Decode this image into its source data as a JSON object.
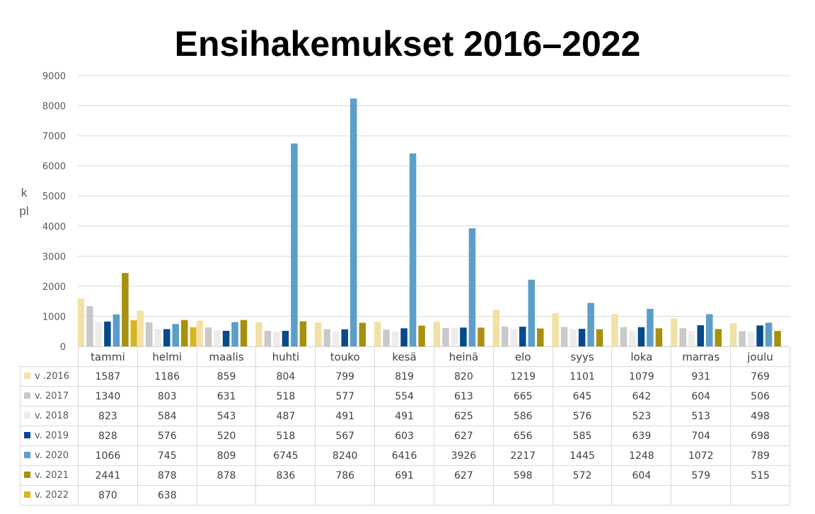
{
  "chart_data": {
    "type": "bar",
    "title": "Ensihakemukset 2016–2022",
    "ylabel": "kpl",
    "xlabel": "",
    "ylim": [
      0,
      9000
    ],
    "yticks": [
      0,
      1000,
      2000,
      3000,
      4000,
      5000,
      6000,
      7000,
      8000,
      9000
    ],
    "grid": true,
    "legend": "data-table",
    "categories": [
      "tammi",
      "helmi",
      "maalis",
      "huhti",
      "touko",
      "kesä",
      "heinä",
      "elo",
      "syys",
      "loka",
      "marras",
      "joulu"
    ],
    "series": [
      {
        "name": "v .2016",
        "color": "#f2e1a6",
        "values": [
          1587,
          1186,
          859,
          804,
          799,
          819,
          820,
          1219,
          1101,
          1079,
          931,
          769
        ]
      },
      {
        "name": "v. 2017",
        "color": "#c9c9c9",
        "values": [
          1340,
          803,
          631,
          518,
          577,
          554,
          613,
          665,
          645,
          642,
          604,
          506
        ]
      },
      {
        "name": "v. 2018",
        "color": "#ececec",
        "values": [
          823,
          584,
          543,
          487,
          491,
          491,
          625,
          586,
          576,
          523,
          513,
          498
        ]
      },
      {
        "name": "v. 2019",
        "color": "#064a8c",
        "values": [
          828,
          576,
          520,
          518,
          567,
          603,
          627,
          656,
          585,
          639,
          704,
          698
        ]
      },
      {
        "name": "v. 2020",
        "color": "#5b9ec9",
        "values": [
          1066,
          745,
          809,
          6745,
          8240,
          6416,
          3926,
          2217,
          1445,
          1248,
          1072,
          789
        ]
      },
      {
        "name": "v. 2021",
        "color": "#a8900f",
        "values": [
          2441,
          878,
          878,
          836,
          786,
          691,
          627,
          598,
          572,
          604,
          579,
          515
        ]
      },
      {
        "name": "v. 2022",
        "color": "#d8b51b",
        "values": [
          870,
          638,
          null,
          null,
          null,
          null,
          null,
          null,
          null,
          null,
          null,
          null
        ]
      }
    ]
  }
}
